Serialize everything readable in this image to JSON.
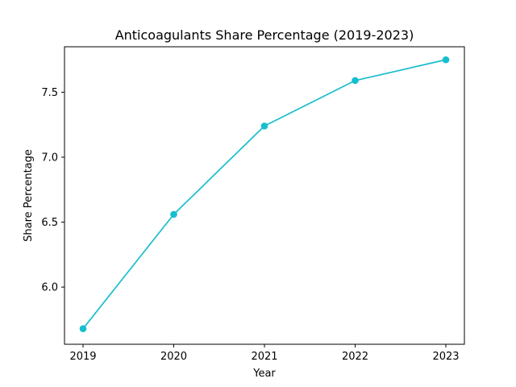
{
  "chart_data": {
    "type": "line",
    "title": "Anticoagulants Share Percentage (2019-2023)",
    "xlabel": "Year",
    "ylabel": "Share Percentage",
    "categories": [
      "2019",
      "2020",
      "2021",
      "2022",
      "2023"
    ],
    "series": [
      {
        "values": [
          5.68,
          6.56,
          7.24,
          7.59,
          7.75
        ],
        "color": "#17becf"
      }
    ],
    "ylim": [
      5.56,
      7.85
    ],
    "yticks": [
      6.0,
      6.5,
      7.0,
      7.5
    ],
    "ytick_labels": [
      "6.0",
      "6.5",
      "7.0",
      "7.5"
    ],
    "grid": false,
    "legend": false
  }
}
